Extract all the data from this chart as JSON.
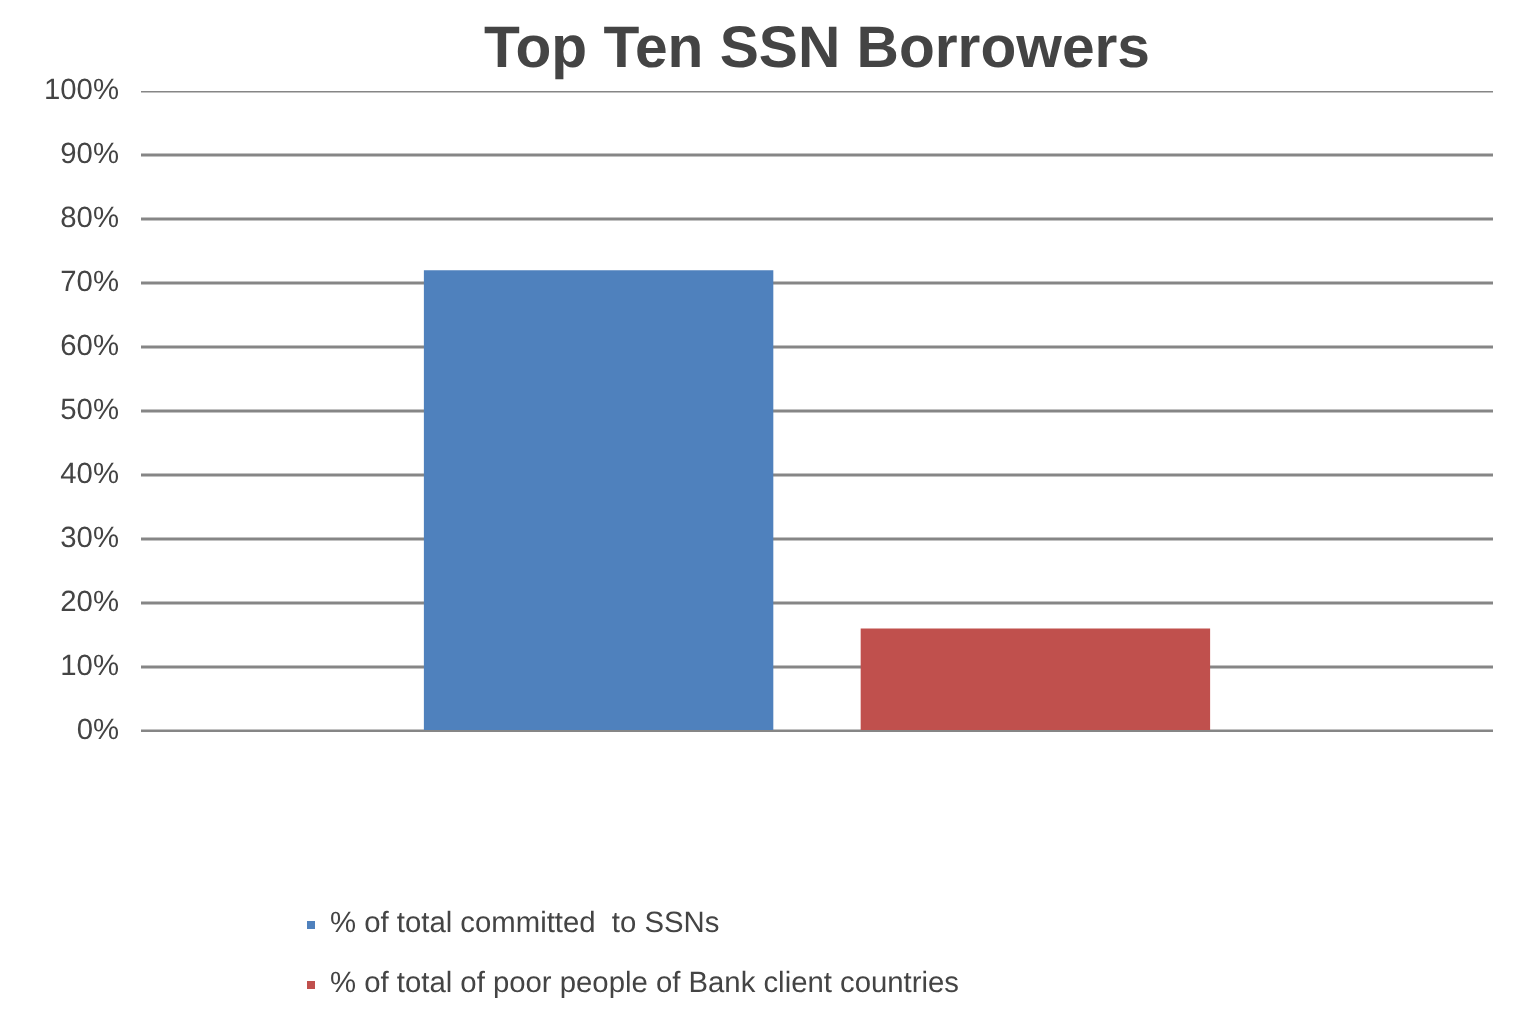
{
  "chart_data": {
    "type": "bar",
    "title": "Top Ten SSN Borrowers",
    "categories": [
      null
    ],
    "series": [
      {
        "name": "% of total committed  to SSNs",
        "color": "#4f81bd",
        "values": [
          72
        ]
      },
      {
        "name": "% of total of poor people of Bank client countries",
        "color": "#c0504d",
        "values": [
          16
        ]
      }
    ],
    "ylim": [
      0,
      100
    ],
    "yticks": [
      {
        "value": 0,
        "label": "0%"
      },
      {
        "value": 10,
        "label": "10%"
      },
      {
        "value": 20,
        "label": "20%"
      },
      {
        "value": 30,
        "label": "30%"
      },
      {
        "value": 40,
        "label": "40%"
      },
      {
        "value": 50,
        "label": "50%"
      },
      {
        "value": 60,
        "label": "60%"
      },
      {
        "value": 70,
        "label": "70%"
      },
      {
        "value": 80,
        "label": "80%"
      },
      {
        "value": 90,
        "label": "90%"
      },
      {
        "value": 100,
        "label": "100%"
      }
    ],
    "grid": "y",
    "legend": "bottom"
  }
}
